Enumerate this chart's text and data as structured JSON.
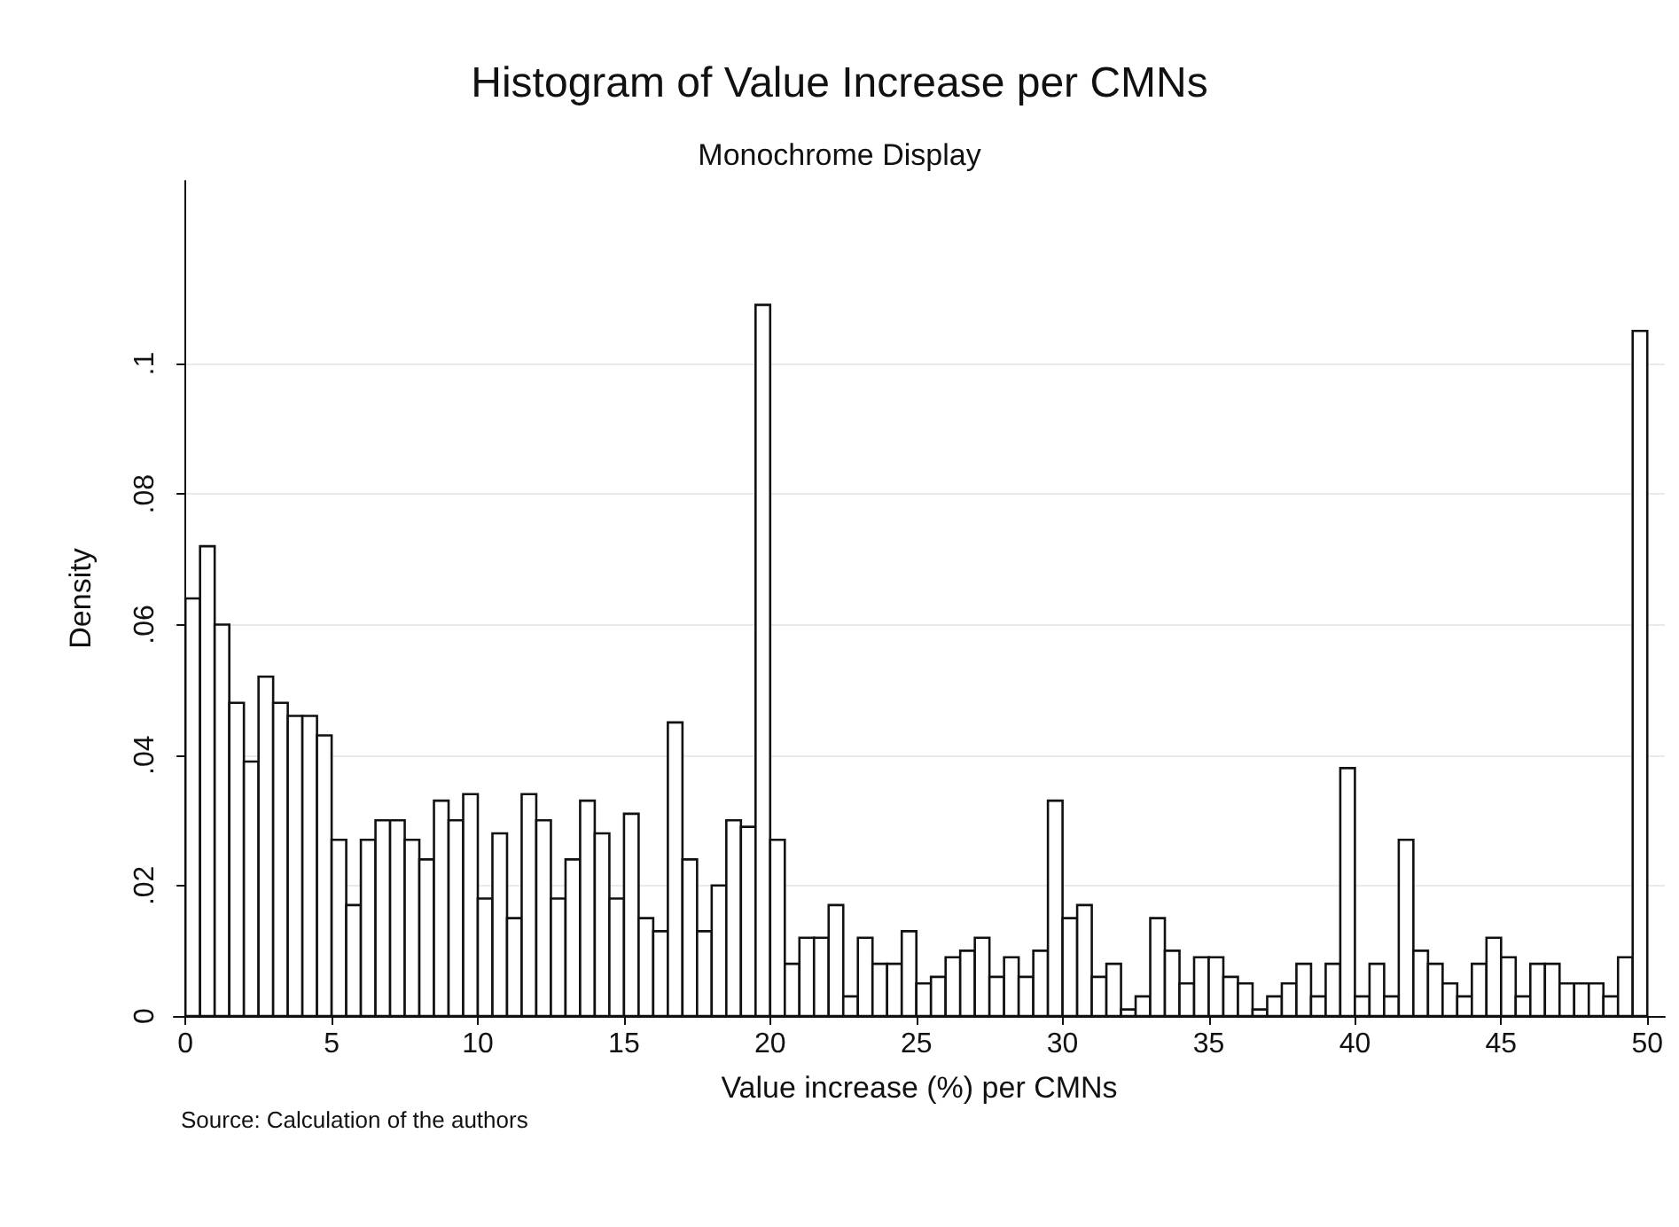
{
  "chart_data": {
    "type": "histogram",
    "title": "Histogram of Value Increase per CMNs",
    "subtitle": "Monochrome Display",
    "xlabel": "Value increase (%) per CMNs",
    "ylabel": "Density",
    "annotations": [
      "Source: Calculation of the authors"
    ],
    "bins": [
      0,
      0.5,
      1,
      1.5,
      2,
      2.5,
      3,
      3.5,
      4,
      4.5,
      5,
      5.5,
      6,
      6.5,
      7,
      7.5,
      8,
      8.5,
      9,
      9.5,
      10,
      10.5,
      11,
      11.5,
      12,
      12.5,
      13,
      13.5,
      14,
      14.5,
      15,
      15.5,
      16,
      16.5,
      17,
      17.5,
      18,
      18.5,
      19,
      19.5,
      20,
      20.5,
      21,
      21.5,
      22,
      22.5,
      23,
      23.5,
      24,
      24.5,
      25,
      25.5,
      26,
      26.5,
      27,
      27.5,
      28,
      28.5,
      29,
      29.5,
      30,
      30.5,
      31,
      31.5,
      32,
      32.5,
      33,
      33.5,
      34,
      34.5,
      35,
      35.5,
      36,
      36.5,
      37,
      37.5,
      38,
      38.5,
      39,
      39.5,
      40,
      40.5,
      41,
      41.5,
      42,
      42.5,
      43,
      43.5,
      44,
      44.5,
      45,
      45.5,
      46,
      46.5,
      47,
      47.5,
      48,
      48.5,
      49,
      49.5,
      50
    ],
    "values": [
      0.064,
      0.072,
      0.06,
      0.048,
      0.039,
      0.052,
      0.048,
      0.046,
      0.046,
      0.043,
      0.027,
      0.017,
      0.027,
      0.03,
      0.03,
      0.027,
      0.024,
      0.033,
      0.03,
      0.034,
      0.018,
      0.028,
      0.015,
      0.034,
      0.03,
      0.018,
      0.024,
      0.033,
      0.028,
      0.018,
      0.031,
      0.015,
      0.013,
      0.045,
      0.024,
      0.013,
      0.02,
      0.03,
      0.029,
      0.109,
      0.027,
      0.008,
      0.012,
      0.012,
      0.017,
      0.003,
      0.012,
      0.008,
      0.008,
      0.013,
      0.005,
      0.006,
      0.009,
      0.01,
      0.012,
      0.006,
      0.009,
      0.006,
      0.01,
      0.033,
      0.015,
      0.017,
      0.006,
      0.008,
      0.001,
      0.003,
      0.015,
      0.01,
      0.005,
      0.009,
      0.009,
      0.006,
      0.005,
      0.001,
      0.003,
      0.005,
      0.008,
      0.003,
      0.008,
      0.038,
      0.003,
      0.008,
      0.003,
      0.027,
      0.01,
      0.008,
      0.005,
      0.003,
      0.008,
      0.012,
      0.009,
      0.003,
      0.008,
      0.008,
      0.005,
      0.005,
      0.005,
      0.003,
      0.009,
      0.105
    ],
    "color": "#ffffff",
    "xlim": [
      -0.4,
      50.6
    ],
    "xticks": [
      0,
      5,
      10,
      15,
      20,
      25,
      30,
      35,
      40,
      45,
      50
    ],
    "ylim": [
      0,
      0.128
    ],
    "yticks": [
      0,
      {
        "value": 0.02,
        "label": ".02"
      },
      {
        "value": 0.04,
        "label": ".04"
      },
      {
        "value": 0.06,
        "label": ".06"
      },
      {
        "value": 0.08,
        "label": ".08"
      },
      {
        "value": 0.1,
        "label": ".1"
      }
    ],
    "grid": "y"
  }
}
